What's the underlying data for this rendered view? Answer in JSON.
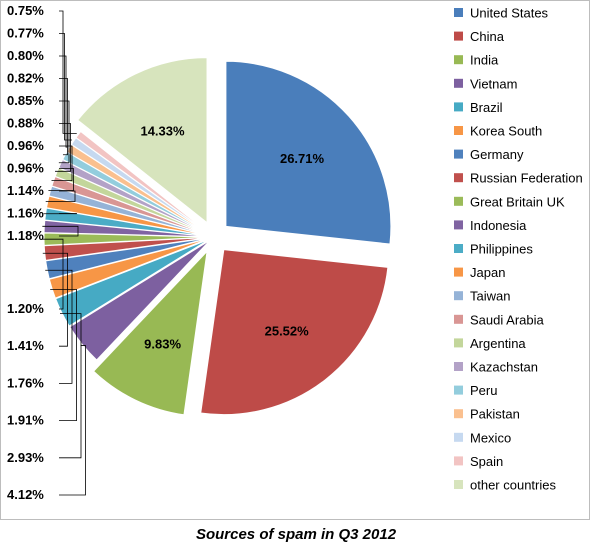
{
  "chart_data": {
    "type": "pie",
    "title": "Sources of spam in Q3 2012",
    "unit": "%",
    "legend_position": "right",
    "slices": [
      {
        "label": "United States",
        "value": 26.71,
        "color": "#4a7ebb"
      },
      {
        "label": "China",
        "value": 25.52,
        "color": "#be4b48"
      },
      {
        "label": "India",
        "value": 9.83,
        "color": "#98b954"
      },
      {
        "label": "Vietnam",
        "value": 4.12,
        "color": "#7d60a0"
      },
      {
        "label": "Brazil",
        "value": 2.93,
        "color": "#46aac4"
      },
      {
        "label": "Korea South",
        "value": 1.91,
        "color": "#f79646"
      },
      {
        "label": "Germany",
        "value": 1.76,
        "color": "#4f81bd"
      },
      {
        "label": "Russian Federation",
        "value": 1.41,
        "color": "#c0504d"
      },
      {
        "label": "Great Britain UK",
        "value": 1.2,
        "color": "#9bbb59"
      },
      {
        "label": "Indonesia",
        "value": 1.18,
        "color": "#8064a2"
      },
      {
        "label": "Philippines",
        "value": 1.16,
        "color": "#4bacc6"
      },
      {
        "label": "Japan",
        "value": 1.14,
        "color": "#f79646"
      },
      {
        "label": "Taiwan",
        "value": 0.96,
        "color": "#95b3d7"
      },
      {
        "label": "Saudi Arabia",
        "value": 0.96,
        "color": "#d99694"
      },
      {
        "label": "Argentina",
        "value": 0.88,
        "color": "#c3d69b"
      },
      {
        "label": "Kazachstan",
        "value": 0.85,
        "color": "#b3a2c7"
      },
      {
        "label": "Peru",
        "value": 0.82,
        "color": "#93cddd"
      },
      {
        "label": "Pakistan",
        "value": 0.8,
        "color": "#fac08f"
      },
      {
        "label": "Mexico",
        "value": 0.77,
        "color": "#c6d9f0"
      },
      {
        "label": "Spain",
        "value": 0.75,
        "color": "#f2c4c3"
      },
      {
        "label": "other countries",
        "value": 14.33,
        "color": "#d7e4bd"
      }
    ],
    "data_labels": {
      "United States": "26.71%",
      "China": "25.52%",
      "India": "9.83%",
      "Vietnam": "4.12%",
      "Brazil": "2.93%",
      "Korea South": "1.91%",
      "Germany": "1.76%",
      "Russian Federation": "1.41%",
      "Great Britain UK": "1.20%",
      "Indonesia": "1.18%",
      "Philippines": "1.16%",
      "Japan": "1.14%",
      "Taiwan": "0.96%",
      "Saudi Arabia": "0.96%",
      "Argentina": "0.88%",
      "Kazachstan": "0.85%",
      "Peru": "0.82%",
      "Pakistan": "0.80%",
      "Mexico": "0.77%",
      "Spain": "0.75%",
      "other countries": "14.33%"
    }
  }
}
